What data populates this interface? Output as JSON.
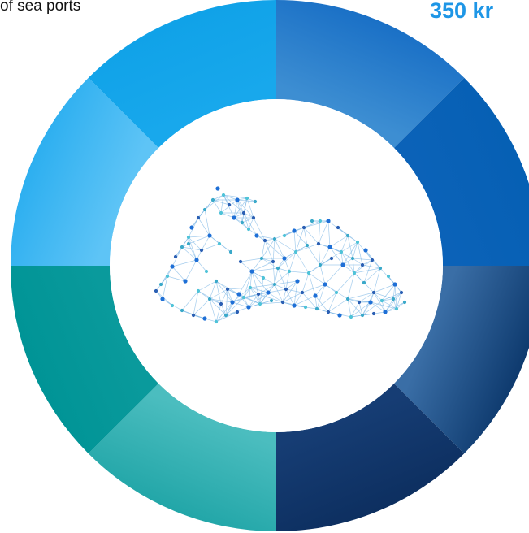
{
  "top_left_text": "of sea ports",
  "top_right_text": "350 kr",
  "ring": {
    "segment_colors": [
      [
        "#1a70c6",
        "#3d8ed2"
      ],
      [
        "#0660b4",
        "#0b62b8"
      ],
      [
        "#0e3a6e",
        "#3a6ea6"
      ],
      [
        "#0d2f60",
        "#163d74"
      ],
      [
        "#0d3163",
        "#0f3a6e"
      ],
      [
        "#22a6a8",
        "#4bbdbf"
      ],
      [
        "#009496",
        "#0a9a9c"
      ],
      [
        "#1aa0dc",
        "#30b0f0"
      ],
      [
        "#2daff0",
        "#5ec4f6"
      ],
      [
        "#10a2e8",
        "#18a8ec"
      ]
    ]
  },
  "center": {
    "map_icon": "latvia-network-map-icon",
    "node_colors": [
      "#1e6fd6",
      "#4fc3d8",
      "#3aa9c9",
      "#2b5fb3"
    ]
  }
}
